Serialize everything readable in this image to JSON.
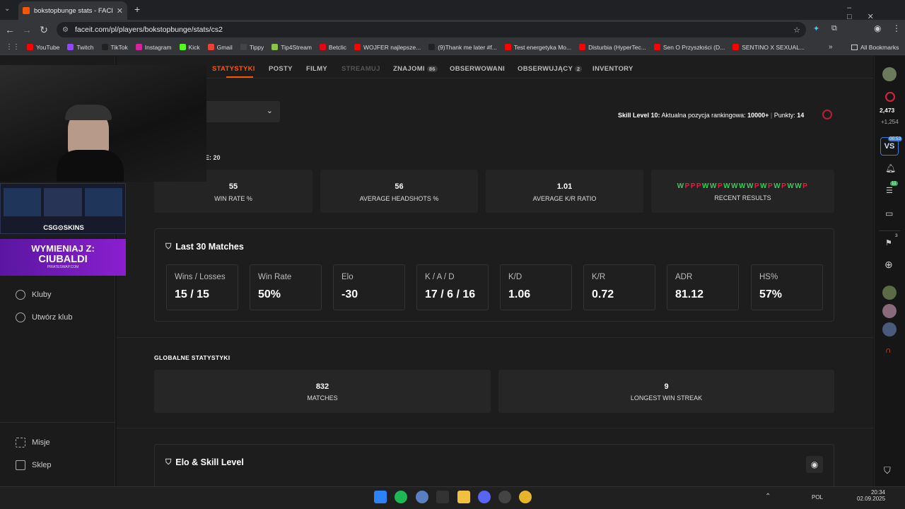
{
  "browser": {
    "tab_title": "bokstopbunge stats - FACEIT.co",
    "url": "faceit.com/pl/players/bokstopbunge/stats/cs2",
    "bookmarks": [
      "YouTube",
      "Twitch",
      "TikTok",
      "Instagram",
      "Kick",
      "Gmail",
      "Tippy",
      "Tip4Stream",
      "Betclic",
      "WOJFER najlepsze...",
      "(9)Thank me later #f...",
      "Test energetyka Mo...",
      "Disturbia (HyperTec...",
      "Sen O Przyszłości (D...",
      "SENTINO X SEXUAL..."
    ],
    "all_bookmarks": "All Bookmarks"
  },
  "subnav": {
    "stats": "STATYSTYKI",
    "posts": "POSTY",
    "films": "FILMY",
    "stream": "STREAMUJ",
    "friends": "ZNAJOMI",
    "friends_count": "86",
    "watched": "OBSERWOWANI",
    "following": "OBSERWUJĄCY",
    "following_count": "2",
    "inventory": "INVENTORY"
  },
  "skill": {
    "label": "Skill Level 10:",
    "ranking_text": " Aktualna pozycja rankingowa: ",
    "rank": "10000+",
    "sep": " | ",
    "points_label": "Punkty: ",
    "points": "14"
  },
  "partial_label": "E: 20",
  "top_cards": [
    {
      "value": "55",
      "label": "WIN RATE %"
    },
    {
      "value": "56",
      "label": "AVERAGE HEADSHOTS %"
    },
    {
      "value": "1.01",
      "label": "AVERAGE K/R RATIO"
    }
  ],
  "recent": {
    "label": "RECENT RESULTS",
    "results": [
      "W",
      "P",
      "P",
      "P",
      "W",
      "W",
      "P",
      "W",
      "W",
      "W",
      "W",
      "P",
      "W",
      "P",
      "W",
      "P",
      "W",
      "W",
      "P"
    ]
  },
  "last30": {
    "title": "Last 30 Matches",
    "stats": [
      {
        "label": "Wins / Losses",
        "value": "15 / 15"
      },
      {
        "label": "Win Rate",
        "value": "50%"
      },
      {
        "label": "Elo",
        "value": "-30"
      },
      {
        "label": "K / A / D",
        "value": "17 / 6 / 16"
      },
      {
        "label": "K/D",
        "value": "1.06"
      },
      {
        "label": "K/R",
        "value": "0.72"
      },
      {
        "label": "ADR",
        "value": "81.12"
      },
      {
        "label": "HS%",
        "value": "57%"
      }
    ]
  },
  "global": {
    "title": "GLOBALNE STATYSTYKI",
    "cards": [
      {
        "value": "832",
        "label": "MATCHES"
      },
      {
        "value": "9",
        "label": "LONGEST WIN STREAK"
      }
    ]
  },
  "elo_section": {
    "title": "Elo & Skill Level"
  },
  "leftnav": {
    "clubs": "Kluby",
    "create_club": "Utwórz klub",
    "missions": "Misje",
    "shop": "Sklep"
  },
  "overlay": {
    "skins_brand": "CSG⊙SKINS",
    "ad_line1": "WYMIENIAJ Z:",
    "ad_line2": "CIUBALDI",
    "ad_site": "PIRATESWAP.COM"
  },
  "rightbar": {
    "count1": "2,473",
    "count2": "+1,254",
    "vs_time": "00:53",
    "badge1": "11",
    "badge2": "3"
  },
  "taskbar": {
    "lang": "POL",
    "time": "20:34",
    "date": "02.09.2025"
  },
  "colors": {
    "accent": "#ff5500",
    "win": "#33cc55",
    "loss": "#e0203f"
  }
}
